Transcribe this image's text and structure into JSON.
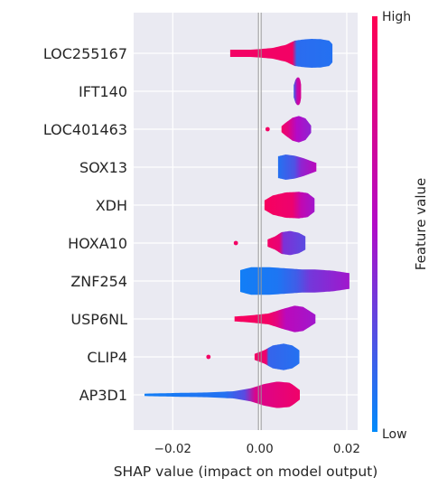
{
  "chart_data": {
    "type": "violin",
    "xlabel": "SHAP value (impact on model output)",
    "xlim": [
      -0.029,
      0.0225
    ],
    "x_ticks": [
      {
        "value": -0.02,
        "label": "−0.02"
      },
      {
        "value": 0.0,
        "label": "0.00"
      },
      {
        "value": 0.02,
        "label": "0.02"
      }
    ],
    "colorbar": {
      "title": "Feature value",
      "high_label": "High",
      "low_label": "Low",
      "high_color": "#ff0052",
      "low_color": "#008bfb"
    },
    "features": [
      {
        "name": "LOC255167",
        "range": [
          -0.0068,
          0.0167
        ],
        "shape": [
          [
            -0.0068,
            0.12
          ],
          [
            -0.002,
            0.12
          ],
          [
            0.0,
            0.14
          ],
          [
            0.003,
            0.18
          ],
          [
            0.006,
            0.28
          ],
          [
            0.008,
            0.42
          ],
          [
            0.01,
            0.46
          ],
          [
            0.012,
            0.48
          ],
          [
            0.014,
            0.47
          ],
          [
            0.016,
            0.42
          ],
          [
            0.0167,
            0.3
          ]
        ],
        "color": [
          [
            -0.0068,
            0.92
          ],
          [
            0.0075,
            0.92
          ],
          [
            0.0085,
            0.12
          ],
          [
            0.0167,
            0.1
          ]
        ],
        "outliers": []
      },
      {
        "name": "IFT140",
        "range": [
          0.0078,
          0.0095
        ],
        "shape": [
          [
            0.0078,
            0.2
          ],
          [
            0.0082,
            0.38
          ],
          [
            0.0086,
            0.46
          ],
          [
            0.009,
            0.46
          ],
          [
            0.0093,
            0.38
          ],
          [
            0.0095,
            0.22
          ]
        ],
        "color": [
          [
            0.0078,
            0.15
          ],
          [
            0.0086,
            0.6
          ],
          [
            0.0095,
            0.75
          ]
        ],
        "outliers": []
      },
      {
        "name": "LOC401463",
        "range": [
          0.005,
          0.0118
        ],
        "shape": [
          [
            0.005,
            0.1
          ],
          [
            0.006,
            0.22
          ],
          [
            0.0075,
            0.38
          ],
          [
            0.009,
            0.44
          ],
          [
            0.0105,
            0.36
          ],
          [
            0.0118,
            0.12
          ]
        ],
        "color": [
          [
            0.005,
            0.92
          ],
          [
            0.0065,
            0.8
          ],
          [
            0.0085,
            0.5
          ],
          [
            0.0118,
            0.4
          ]
        ],
        "outliers": [
          {
            "x": 0.0018,
            "c": 0.92
          }
        ]
      },
      {
        "name": "SOX13",
        "range": [
          0.0042,
          0.013
        ],
        "shape": [
          [
            0.0042,
            0.36
          ],
          [
            0.006,
            0.42
          ],
          [
            0.008,
            0.38
          ],
          [
            0.01,
            0.3
          ],
          [
            0.0115,
            0.22
          ],
          [
            0.013,
            0.14
          ]
        ],
        "color": [
          [
            0.0042,
            0.1
          ],
          [
            0.008,
            0.22
          ],
          [
            0.0095,
            0.4
          ],
          [
            0.013,
            0.55
          ]
        ],
        "outliers": []
      },
      {
        "name": "XDH",
        "range": [
          0.0011,
          0.0126
        ],
        "shape": [
          [
            0.0011,
            0.16
          ],
          [
            0.003,
            0.32
          ],
          [
            0.006,
            0.42
          ],
          [
            0.009,
            0.44
          ],
          [
            0.011,
            0.4
          ],
          [
            0.0126,
            0.22
          ]
        ],
        "color": [
          [
            0.0011,
            0.95
          ],
          [
            0.0075,
            0.88
          ],
          [
            0.0095,
            0.6
          ],
          [
            0.0126,
            0.45
          ]
        ],
        "outliers": []
      },
      {
        "name": "HOXA10",
        "range": [
          0.0018,
          0.0105
        ],
        "shape": [
          [
            0.0018,
            0.12
          ],
          [
            0.0035,
            0.22
          ],
          [
            0.005,
            0.36
          ],
          [
            0.007,
            0.4
          ],
          [
            0.009,
            0.34
          ],
          [
            0.0105,
            0.22
          ]
        ],
        "color": [
          [
            0.0018,
            0.92
          ],
          [
            0.0045,
            0.85
          ],
          [
            0.0055,
            0.35
          ],
          [
            0.0105,
            0.25
          ]
        ],
        "outliers": [
          {
            "x": -0.0055,
            "c": 0.92
          }
        ]
      },
      {
        "name": "ZNF254",
        "range": [
          -0.0045,
          0.0206
        ],
        "shape": [
          [
            -0.0045,
            0.36
          ],
          [
            -0.002,
            0.46
          ],
          [
            0.002,
            0.46
          ],
          [
            0.006,
            0.42
          ],
          [
            0.01,
            0.38
          ],
          [
            0.013,
            0.38
          ],
          [
            0.017,
            0.34
          ],
          [
            0.0206,
            0.26
          ]
        ],
        "color": [
          [
            -0.0045,
            0.05
          ],
          [
            0.004,
            0.08
          ],
          [
            0.0085,
            0.18
          ],
          [
            0.0115,
            0.32
          ],
          [
            0.0206,
            0.45
          ]
        ],
        "outliers": []
      },
      {
        "name": "USP6NL",
        "range": [
          -0.0058,
          0.0128
        ],
        "shape": [
          [
            -0.0058,
            0.08
          ],
          [
            -0.002,
            0.12
          ],
          [
            0.002,
            0.18
          ],
          [
            0.005,
            0.32
          ],
          [
            0.008,
            0.44
          ],
          [
            0.01,
            0.4
          ],
          [
            0.0128,
            0.14
          ]
        ],
        "color": [
          [
            -0.0058,
            0.95
          ],
          [
            0.002,
            0.92
          ],
          [
            0.004,
            0.8
          ],
          [
            0.006,
            0.55
          ],
          [
            0.0128,
            0.45
          ]
        ],
        "outliers": []
      },
      {
        "name": "CLIP4",
        "range": [
          -0.0012,
          0.0091
        ],
        "shape": [
          [
            -0.0012,
            0.1
          ],
          [
            0.001,
            0.22
          ],
          [
            0.003,
            0.38
          ],
          [
            0.0055,
            0.44
          ],
          [
            0.0075,
            0.38
          ],
          [
            0.0091,
            0.22
          ]
        ],
        "color": [
          [
            -0.0012,
            0.92
          ],
          [
            0.0015,
            0.88
          ],
          [
            0.002,
            0.15
          ],
          [
            0.0091,
            0.1
          ]
        ],
        "outliers": [
          {
            "x": -0.0118,
            "c": 0.92
          }
        ]
      },
      {
        "name": "AP3D1",
        "range": [
          -0.0265,
          0.0092
        ],
        "shape": [
          [
            -0.0265,
            0.04
          ],
          [
            -0.02,
            0.06
          ],
          [
            -0.012,
            0.08
          ],
          [
            -0.006,
            0.12
          ],
          [
            -0.002,
            0.22
          ],
          [
            0.001,
            0.36
          ],
          [
            0.004,
            0.44
          ],
          [
            0.007,
            0.4
          ],
          [
            0.0092,
            0.16
          ]
        ],
        "color": [
          [
            -0.0265,
            0.05
          ],
          [
            -0.008,
            0.1
          ],
          [
            -0.0035,
            0.25
          ],
          [
            -0.001,
            0.75
          ],
          [
            0.0092,
            0.9
          ]
        ],
        "outliers": []
      }
    ]
  }
}
